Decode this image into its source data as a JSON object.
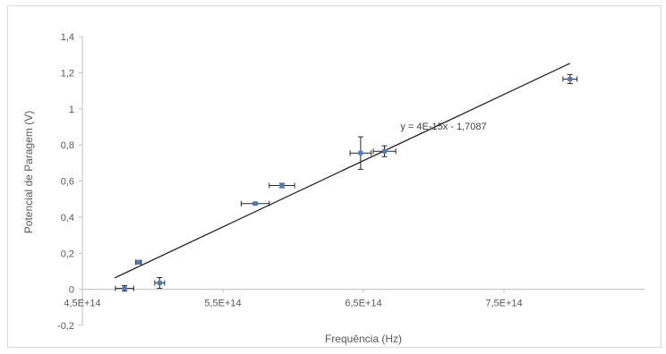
{
  "chart_data": {
    "type": "scatter",
    "xlabel": "Frequência (Hz)",
    "ylabel": "Potencial de Paragem (V)",
    "xlim": [
      450000000000000,
      850000000000000
    ],
    "ylim": [
      -0.2,
      1.4
    ],
    "x_ticks": [
      "4,5E+14",
      "5,5E+14",
      "6,5E+14",
      "7,5E+14"
    ],
    "x_tick_values": [
      450000000000000,
      550000000000000,
      650000000000000,
      750000000000000
    ],
    "y_ticks": [
      "-0,2",
      "0",
      "0,2",
      "0,4",
      "0,6",
      "0,8",
      "1",
      "1,2",
      "1,4"
    ],
    "y_tick_values": [
      -0.2,
      0,
      0.2,
      0.4,
      0.6,
      0.8,
      1.0,
      1.2,
      1.4
    ],
    "grid": false,
    "marker_color": "#4a7ebb",
    "points": [
      {
        "x": 480000000000000,
        "y": 0.005,
        "xerr": 6500000000000,
        "yerr": 0.015
      },
      {
        "x": 490000000000000,
        "y": 0.15,
        "xerr": 2000000000000,
        "yerr": 0.01
      },
      {
        "x": 505000000000000,
        "y": 0.035,
        "xerr": 3500000000000,
        "yerr": 0.03
      },
      {
        "x": 573000000000000,
        "y": 0.475,
        "xerr": 10000000000000,
        "yerr": 0.005
      },
      {
        "x": 592000000000000,
        "y": 0.575,
        "xerr": 9000000000000,
        "yerr": 0.012
      },
      {
        "x": 648000000000000,
        "y": 0.755,
        "xerr": 7500000000000,
        "yerr": 0.09
      },
      {
        "x": 665000000000000,
        "y": 0.765,
        "xerr": 8000000000000,
        "yerr": 0.03
      },
      {
        "x": 797000000000000,
        "y": 1.165,
        "xerr": 5000000000000,
        "yerr": 0.025
      }
    ],
    "trendline": {
      "equation": "y = 4E-15x - 1,7087",
      "x_start": 473000000000000,
      "x_end": 797000000000000,
      "y_start": 0.0632,
      "y_end": 1.2523
    }
  }
}
